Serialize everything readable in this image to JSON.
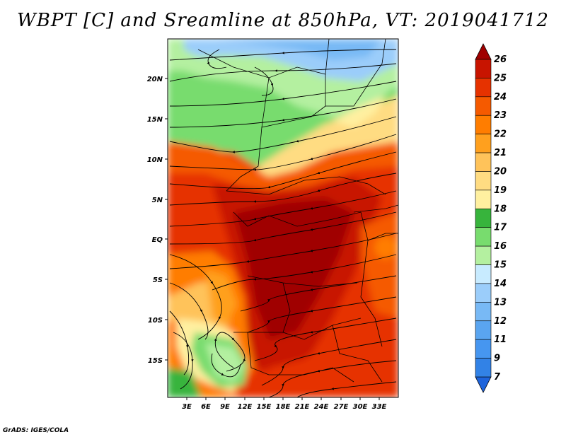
{
  "title": "WBPT [C] and Sreamline at 850hPa, VT: 2019041712",
  "credit": "GrADS: IGES/COLA",
  "map": {
    "variable": "Wet-bulb potential temperature",
    "units": "C",
    "level": "850hPa",
    "valid_time": "2019041712",
    "overlay": "streamlines",
    "lon_range": [
      0,
      36
    ],
    "lat_range": [
      -20,
      25
    ],
    "lat_ticks": [
      "20N",
      "15N",
      "10N",
      "5N",
      "EQ",
      "5S",
      "10S",
      "15S"
    ],
    "lon_ticks": [
      "3E",
      "6E",
      "9E",
      "12E",
      "15E",
      "18E",
      "21E",
      "24E",
      "27E",
      "30E",
      "33E"
    ]
  },
  "colorbar": {
    "labels": [
      "7",
      "9",
      "11",
      "12",
      "13",
      "14",
      "15",
      "16",
      "17",
      "18",
      "19",
      "20",
      "21",
      "22",
      "23",
      "24",
      "25",
      "26"
    ],
    "colors": [
      "#1e64dc",
      "#3282e6",
      "#4696f0",
      "#5aa5f0",
      "#78b9f5",
      "#9bcdfa",
      "#c8ebff",
      "#b4f0a0",
      "#78dc6e",
      "#37b43c",
      "#fff0a0",
      "#ffdc82",
      "#ffc35a",
      "#ffa01e",
      "#ff7d00",
      "#f55a00",
      "#e63200",
      "#c81400",
      "#a00000"
    ]
  }
}
